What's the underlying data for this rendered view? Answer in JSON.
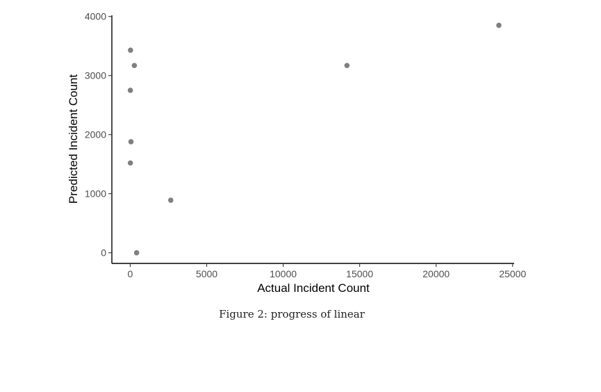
{
  "chart_data": {
    "type": "scatter",
    "title": "",
    "xlabel": "Actual Incident Count",
    "ylabel": "Predicted Incident Count",
    "xlim": [
      -1200,
      25100
    ],
    "ylim": [
      -180,
      4020
    ],
    "x_ticks": [
      0,
      5000,
      10000,
      15000,
      20000,
      25000
    ],
    "x_tick_labels": [
      "0",
      "5000",
      "10000",
      "15000",
      "20000",
      "25000"
    ],
    "y_ticks": [
      0,
      1000,
      2000,
      3000,
      4000
    ],
    "y_tick_labels": [
      "0",
      "1000",
      "2000",
      "3000",
      "4000"
    ],
    "points": [
      {
        "x": 20,
        "y": 3430
      },
      {
        "x": 270,
        "y": 3170
      },
      {
        "x": 10,
        "y": 2750
      },
      {
        "x": 50,
        "y": 1880
      },
      {
        "x": 10,
        "y": 1520
      },
      {
        "x": 2650,
        "y": 890
      },
      {
        "x": 420,
        "y": 0
      },
      {
        "x": 14170,
        "y": 3170
      },
      {
        "x": 24100,
        "y": 3850
      }
    ],
    "point_color": "#808080",
    "grid": false,
    "legend": "none"
  },
  "caption": "Figure 2: progress of linear"
}
